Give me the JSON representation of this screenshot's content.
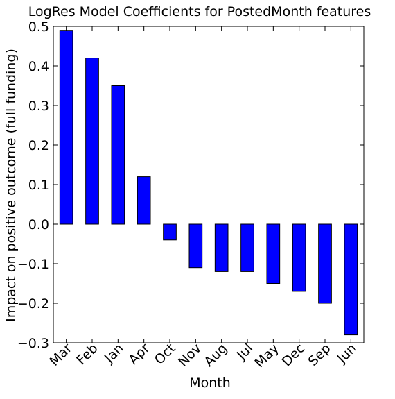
{
  "chart_data": {
    "type": "bar",
    "title": "LogRes Model Coefficients for PostedMonth features",
    "xlabel": "Month",
    "ylabel": "Impact on positive outcome (full funding)",
    "categories": [
      "Mar",
      "Feb",
      "Jan",
      "Apr",
      "Oct",
      "Nov",
      "Aug",
      "Jul",
      "May",
      "Dec",
      "Sep",
      "Jun"
    ],
    "values": [
      0.49,
      0.42,
      0.35,
      0.12,
      -0.04,
      -0.11,
      -0.12,
      -0.12,
      -0.15,
      -0.17,
      -0.2,
      -0.28
    ],
    "ylim": [
      -0.3,
      0.5
    ],
    "yticks": [
      -0.3,
      -0.2,
      -0.1,
      0.0,
      0.1,
      0.2,
      0.3,
      0.4,
      0.5
    ],
    "ytick_labels": [
      "−0.3",
      "−0.2",
      "−0.1",
      "0.0",
      "0.1",
      "0.2",
      "0.3",
      "0.4",
      "0.5"
    ],
    "grid": false,
    "bar_color": "#0000ff",
    "edge_color": "#000000"
  }
}
